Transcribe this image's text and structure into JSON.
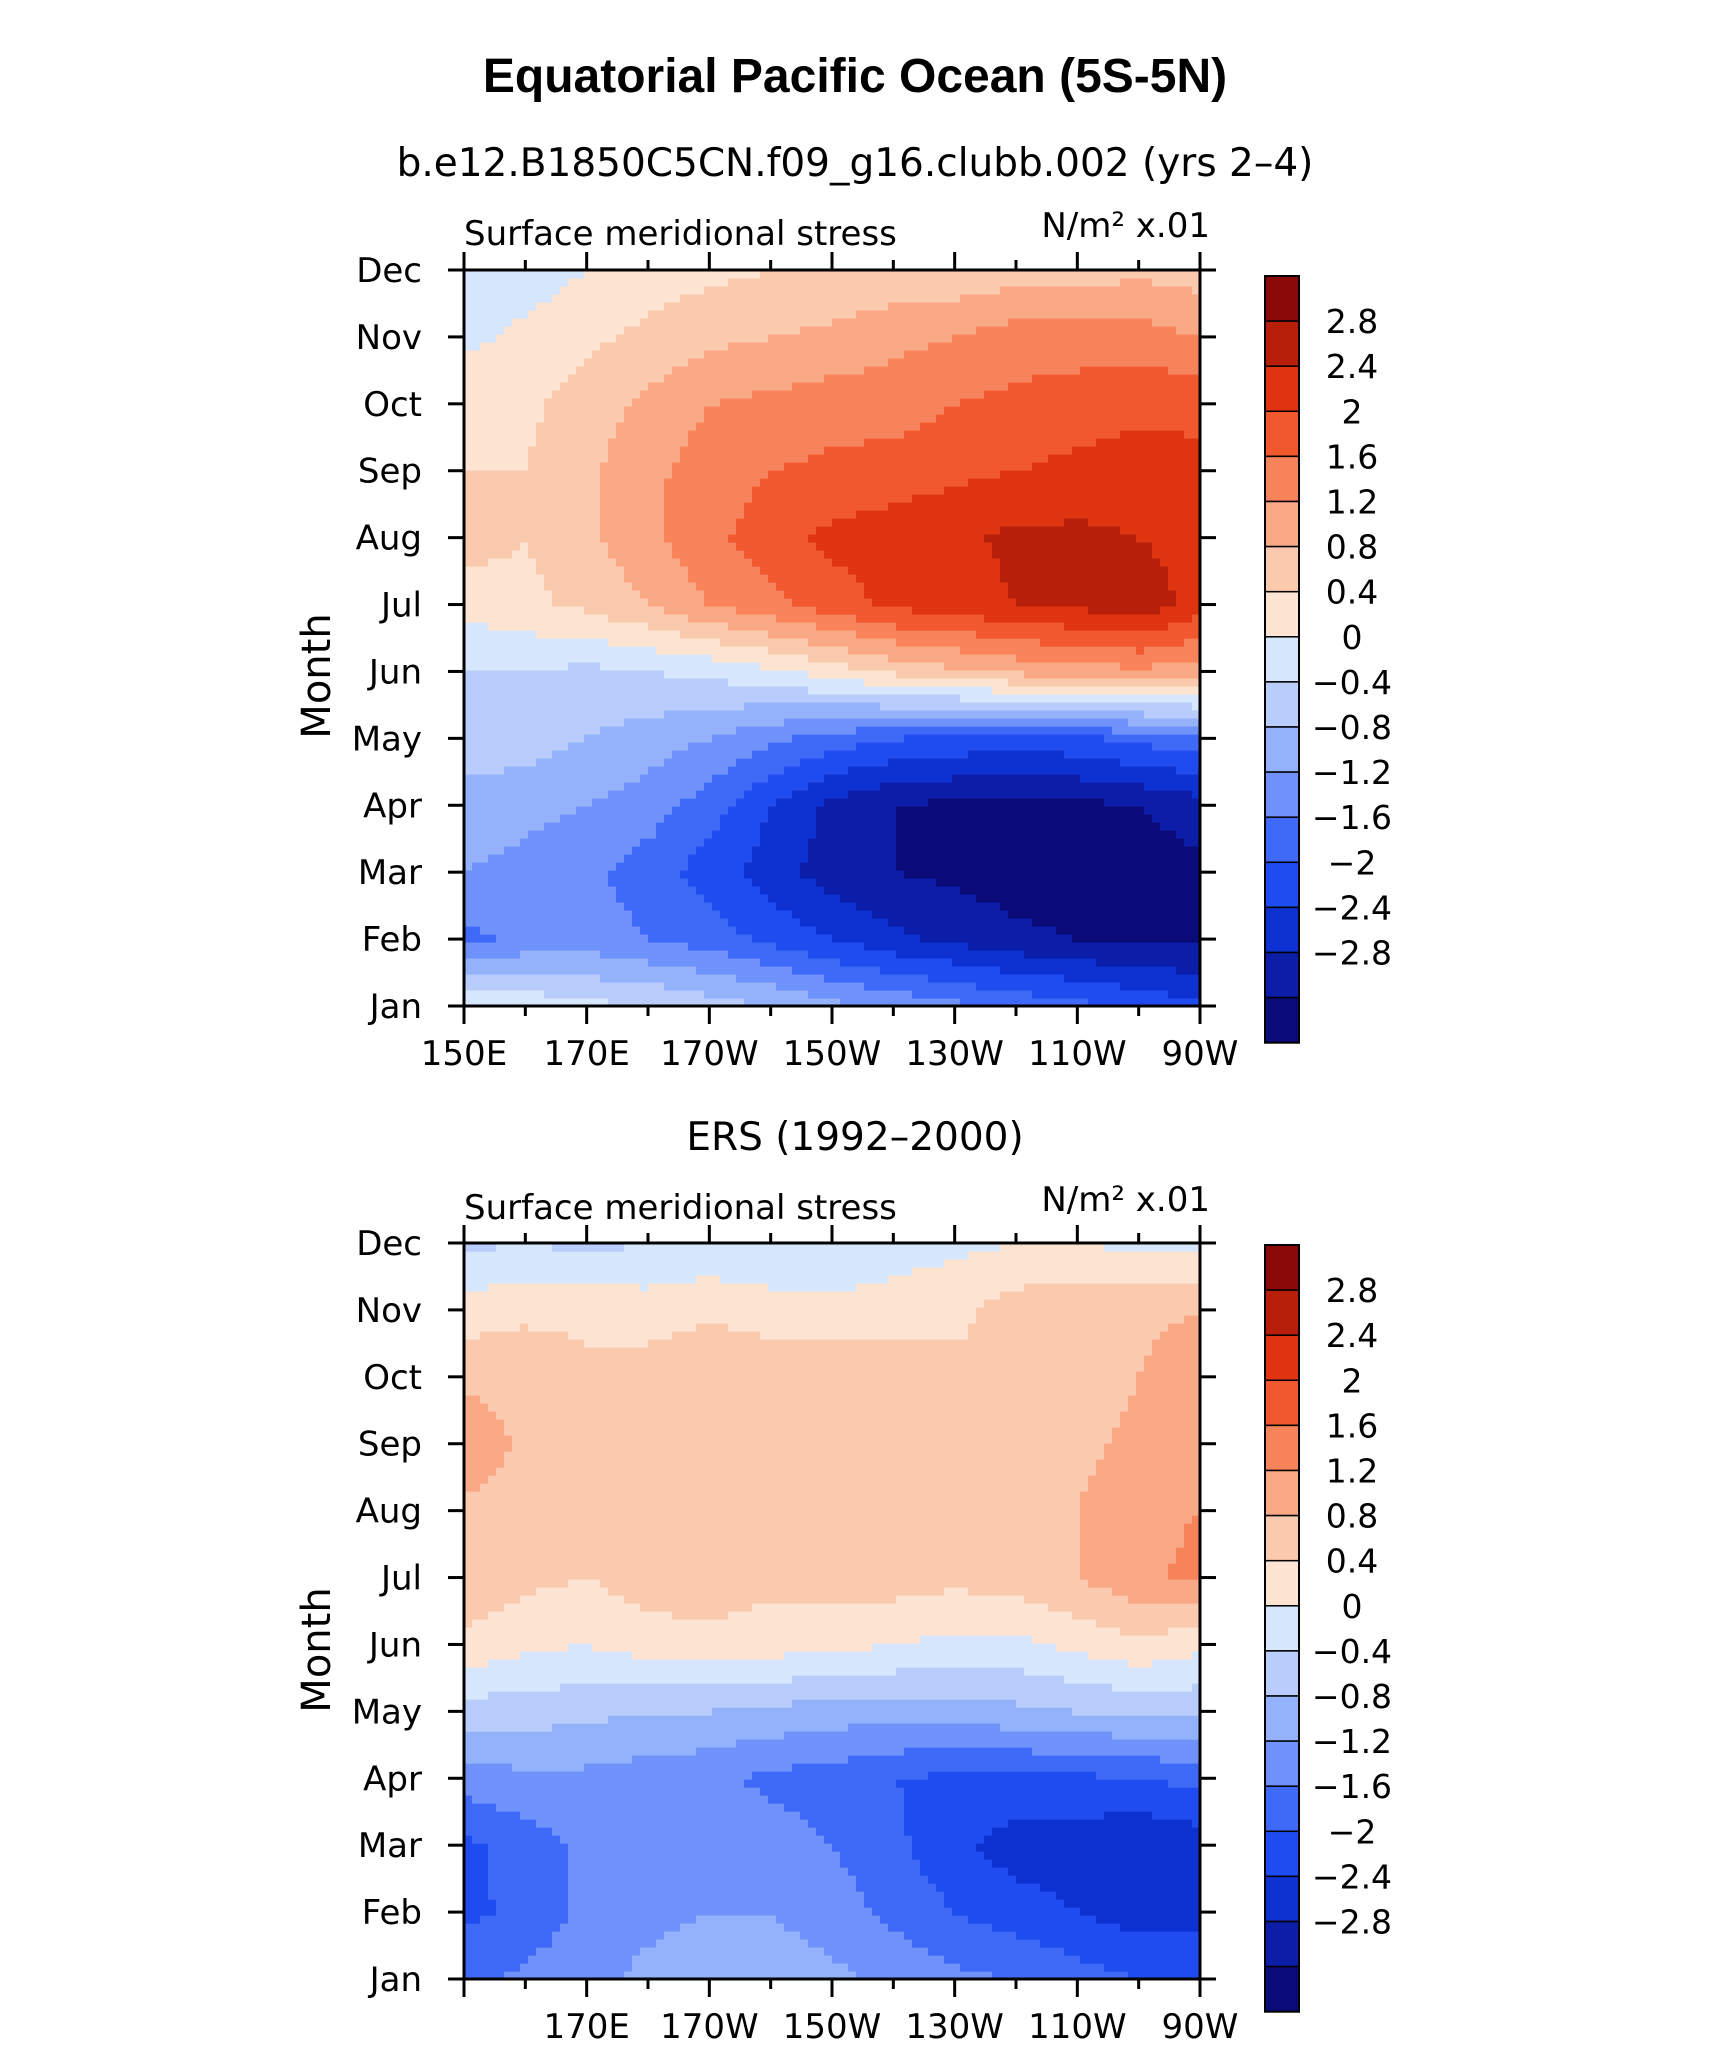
{
  "figure_title": "Equatorial Pacific Ocean (5S-5N)",
  "colors": [
    "#0a0a78",
    "#0c1da8",
    "#0e32d2",
    "#1f4cf0",
    "#3f6af7",
    "#6f92fa",
    "#94b1fb",
    "#b8cdfc",
    "#d6e6fd",
    "#fde4d2",
    "#fbc9ad",
    "#f9a985",
    "#f6835a",
    "#f2582e",
    "#de3510",
    "#b81f0a",
    "#8a0a08"
  ],
  "chart_data": [
    {
      "type": "heatmap",
      "title": "b.e12.B1850C5CN.f09_g16.clubb.002 (yrs 2–4)",
      "left_label": "Surface meridional stress",
      "units_label": "N/m² x.01",
      "ylabel": "Month",
      "x_tick_labels": [
        "150E",
        "170E",
        "170W",
        "150W",
        "130W",
        "110W",
        "90W"
      ],
      "y_tick_labels": [
        "Jan",
        "Feb",
        "Mar",
        "Apr",
        "May",
        "Jun",
        "Jul",
        "Aug",
        "Sep",
        "Oct",
        "Nov",
        "Dec"
      ],
      "colorbar_labels": [
        "2.8",
        "2.4",
        "2",
        "1.6",
        "1.2",
        "0.8",
        "0.4",
        "0",
        "−0.4",
        "−0.8",
        "−1.2",
        "−1.6",
        "−2",
        "−2.4",
        "−2.8"
      ],
      "x": [
        150,
        160,
        170,
        180,
        190,
        200,
        210,
        220,
        230,
        240,
        250,
        260,
        270
      ],
      "y": [
        1,
        2,
        3,
        4,
        5,
        6,
        7,
        8,
        9,
        10,
        11,
        12
      ],
      "z": [
        [
          0.3,
          0.1,
          -0.1,
          -0.2,
          -0.4,
          -0.6,
          -0.9,
          -1.1,
          -1.3,
          -1.5,
          -1.7,
          -1.9,
          -2.1
        ],
        [
          -1.5,
          -1.3,
          -1.2,
          -1.4,
          -1.6,
          -1.9,
          -2.2,
          -2.5,
          -2.7,
          -2.9,
          -3.0,
          -3.1,
          -3.1
        ],
        [
          -1.0,
          -1.1,
          -1.3,
          -1.6,
          -2.0,
          -2.4,
          -2.8,
          -3.0,
          -3.1,
          -3.2,
          -3.2,
          -3.2,
          -3.1
        ],
        [
          -0.8,
          -0.9,
          -1.0,
          -1.2,
          -1.6,
          -2.2,
          -2.7,
          -3.0,
          -3.1,
          -3.1,
          -3.1,
          -3.0,
          -2.8
        ],
        [
          -0.3,
          -0.4,
          -0.6,
          -0.8,
          -1.0,
          -1.3,
          -1.6,
          -1.8,
          -1.9,
          -2.0,
          -1.9,
          -1.7,
          -1.5
        ],
        [
          -0.2,
          -0.2,
          -0.3,
          -0.2,
          -0.1,
          0.1,
          0.4,
          0.7,
          0.9,
          1.1,
          1.2,
          1.3,
          1.2
        ],
        [
          0.3,
          0.5,
          0.7,
          1.0,
          1.4,
          1.7,
          2.0,
          2.3,
          2.4,
          2.6,
          2.7,
          2.9,
          2.4
        ],
        [
          0.8,
          0.6,
          0.9,
          1.3,
          1.7,
          2.0,
          2.3,
          2.4,
          2.5,
          2.7,
          2.7,
          2.6,
          2.4
        ],
        [
          0.6,
          0.6,
          0.9,
          1.3,
          1.6,
          1.8,
          1.9,
          2.0,
          2.1,
          2.2,
          2.3,
          2.4,
          2.3
        ],
        [
          0.5,
          0.5,
          0.8,
          1.1,
          1.4,
          1.5,
          1.6,
          1.6,
          1.8,
          1.9,
          2.0,
          2.1,
          2.1
        ],
        [
          0.1,
          0.3,
          0.5,
          0.7,
          0.9,
          1.0,
          1.1,
          1.3,
          1.4,
          1.6,
          1.6,
          1.6,
          1.4
        ],
        [
          -0.2,
          0.0,
          0.2,
          0.4,
          0.5,
          0.6,
          0.6,
          0.7,
          0.7,
          0.8,
          0.8,
          0.9,
          0.8
        ]
      ]
    },
    {
      "type": "heatmap",
      "title": "ERS (1992–2000)",
      "left_label": "Surface meridional stress",
      "units_label": "N/m² x.01",
      "ylabel": "Month",
      "x_tick_labels": [
        "170E",
        "170W",
        "150W",
        "130W",
        "110W",
        "90W"
      ],
      "y_tick_labels": [
        "Jan",
        "Feb",
        "Mar",
        "Apr",
        "May",
        "Jun",
        "Jul",
        "Aug",
        "Sep",
        "Oct",
        "Nov",
        "Dec"
      ],
      "colorbar_labels": [
        "2.8",
        "2.4",
        "2",
        "1.6",
        "1.2",
        "0.8",
        "0.4",
        "0",
        "−0.4",
        "−0.8",
        "−1.2",
        "−1.6",
        "−2",
        "−2.4",
        "−2.8"
      ],
      "x": [
        150,
        160,
        170,
        180,
        190,
        200,
        210,
        220,
        230,
        240,
        250,
        260,
        270
      ],
      "y": [
        1,
        2,
        3,
        4,
        5,
        6,
        7,
        8,
        9,
        10,
        11,
        12
      ],
      "z": [
        [
          -1.5,
          -1.3,
          -1.1,
          -0.9,
          -0.8,
          -0.8,
          -0.9,
          -1.1,
          -1.3,
          -1.4,
          -1.6,
          -1.8,
          -2.0
        ],
        [
          -1.9,
          -1.7,
          -1.3,
          -1.1,
          -1.0,
          -1.0,
          -1.2,
          -1.5,
          -1.8,
          -2.0,
          -2.2,
          -2.4,
          -2.3
        ],
        [
          -1.9,
          -1.6,
          -1.3,
          -1.1,
          -1.1,
          -1.2,
          -1.4,
          -1.7,
          -2.1,
          -2.4,
          -2.4,
          -2.6,
          -2.4
        ],
        [
          -1.2,
          -1.1,
          -1.1,
          -1.2,
          -1.3,
          -1.5,
          -1.6,
          -1.8,
          -1.9,
          -1.9,
          -1.9,
          -1.8,
          -1.7
        ],
        [
          -0.4,
          -0.4,
          -0.5,
          -0.6,
          -0.6,
          -0.7,
          -0.8,
          -0.8,
          -0.8,
          -0.7,
          -0.6,
          -0.5,
          -0.5
        ],
        [
          0.5,
          0.3,
          0.2,
          0.4,
          0.5,
          0.4,
          0.3,
          0.2,
          0.1,
          0.1,
          0.3,
          0.5,
          0.3
        ],
        [
          0.9,
          0.7,
          0.6,
          0.8,
          0.8,
          0.7,
          0.8,
          0.8,
          0.7,
          0.8,
          1.0,
          1.3,
          1.5
        ],
        [
          0.9,
          0.8,
          0.6,
          0.7,
          0.9,
          0.8,
          0.8,
          0.9,
          0.9,
          0.8,
          1.0,
          1.3,
          1.4
        ],
        [
          1.3,
          0.9,
          0.7,
          0.8,
          1.0,
          0.9,
          0.9,
          0.9,
          0.8,
          0.6,
          0.9,
          1.1,
          1.4
        ],
        [
          0.9,
          0.9,
          0.7,
          0.8,
          1.0,
          0.9,
          0.9,
          0.9,
          0.7,
          0.6,
          0.8,
          1.0,
          1.3
        ],
        [
          0.4,
          0.5,
          0.5,
          0.4,
          0.5,
          0.4,
          0.3,
          0.4,
          0.5,
          0.8,
          0.9,
          0.9,
          1.0
        ],
        [
          -0.3,
          -0.2,
          -0.3,
          -0.2,
          -0.1,
          -0.2,
          -0.1,
          0.0,
          0.1,
          0.2,
          0.2,
          0.1,
          0.1
        ]
      ]
    }
  ]
}
